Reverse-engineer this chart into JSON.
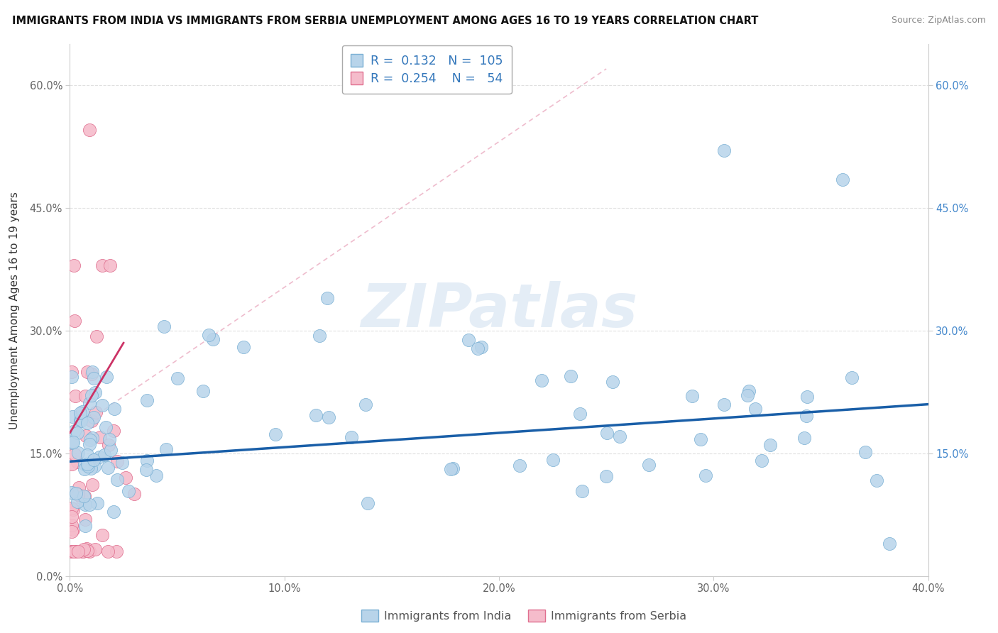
{
  "title": "IMMIGRANTS FROM INDIA VS IMMIGRANTS FROM SERBIA UNEMPLOYMENT AMONG AGES 16 TO 19 YEARS CORRELATION CHART",
  "source": "Source: ZipAtlas.com",
  "ylabel": "Unemployment Among Ages 16 to 19 years",
  "xlabel_india": "Immigrants from India",
  "xlabel_serbia": "Immigrants from Serbia",
  "xlim": [
    0.0,
    0.4
  ],
  "ylim": [
    0.0,
    0.65
  ],
  "xticks": [
    0.0,
    0.1,
    0.2,
    0.3,
    0.4
  ],
  "xtick_labels": [
    "0.0%",
    "10.0%",
    "20.0%",
    "30.0%",
    "40.0%"
  ],
  "yticks": [
    0.0,
    0.15,
    0.3,
    0.45,
    0.6
  ],
  "ytick_labels": [
    "0.0%",
    "15.0%",
    "30.0%",
    "45.0%",
    "60.0%"
  ],
  "right_ytick_labels": [
    "15.0%",
    "30.0%",
    "45.0%",
    "60.0%"
  ],
  "india_fill_color": "#b8d4ea",
  "india_edge_color": "#7ab0d4",
  "serbia_fill_color": "#f5bccb",
  "serbia_edge_color": "#e07090",
  "trend_india_color": "#1a5fa8",
  "trend_serbia_solid_color": "#cc3366",
  "trend_serbia_dash_color": "#e8a0b8",
  "R_india": 0.132,
  "N_india": 105,
  "R_serbia": 0.254,
  "N_serbia": 54,
  "watermark": "ZIPatlas",
  "legend_color": "#3377bb",
  "right_axis_color": "#4488cc",
  "grid_color": "#e0e0e0",
  "background_color": "#ffffff"
}
